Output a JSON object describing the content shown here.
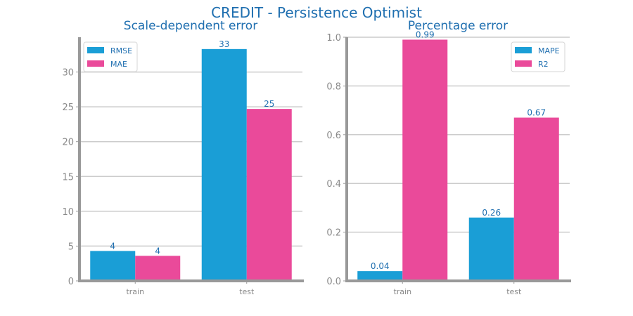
{
  "figure": {
    "suptitle": "CREDIT - Persistence Optimist",
    "colors": {
      "title": "#1f6fb0",
      "tick_label": "#8a8a8a",
      "data_label": "#1f6fb0",
      "grid": "#cccccc",
      "axis": "#999999",
      "series_blue": "#1a9ed6",
      "series_pink": "#ea4a9a"
    }
  },
  "chart_data": [
    {
      "type": "bar",
      "title": "Scale-dependent error",
      "xlabel": "",
      "ylabel": "",
      "categories": [
        "train",
        "test"
      ],
      "series": [
        {
          "name": "RMSE",
          "values": [
            4.3,
            33.3
          ],
          "labels": [
            "4",
            "33"
          ]
        },
        {
          "name": "MAE",
          "values": [
            3.6,
            24.7
          ],
          "labels": [
            "4",
            "25"
          ]
        }
      ],
      "ylim": [
        0,
        35
      ],
      "yticks": [
        "0",
        "5",
        "10",
        "15",
        "20",
        "25",
        "30"
      ],
      "ytick_values": [
        0,
        5,
        10,
        15,
        20,
        25,
        30
      ],
      "grid": true,
      "legend": "top-left"
    },
    {
      "type": "bar",
      "title": "Percentage error",
      "xlabel": "",
      "ylabel": "",
      "categories": [
        "train",
        "test"
      ],
      "series": [
        {
          "name": "MAPE",
          "values": [
            0.04,
            0.26
          ],
          "labels": [
            "0.04",
            "0.26"
          ]
        },
        {
          "name": "R2",
          "values": [
            0.99,
            0.67
          ],
          "labels": [
            "0.99",
            "0.67"
          ]
        }
      ],
      "ylim": [
        0,
        1.0
      ],
      "yticks": [
        "0.0",
        "0.2",
        "0.4",
        "0.6",
        "0.8",
        "1.0"
      ],
      "ytick_values": [
        0,
        0.2,
        0.4,
        0.6,
        0.8,
        1.0
      ],
      "grid": true,
      "legend": "top-right"
    }
  ]
}
